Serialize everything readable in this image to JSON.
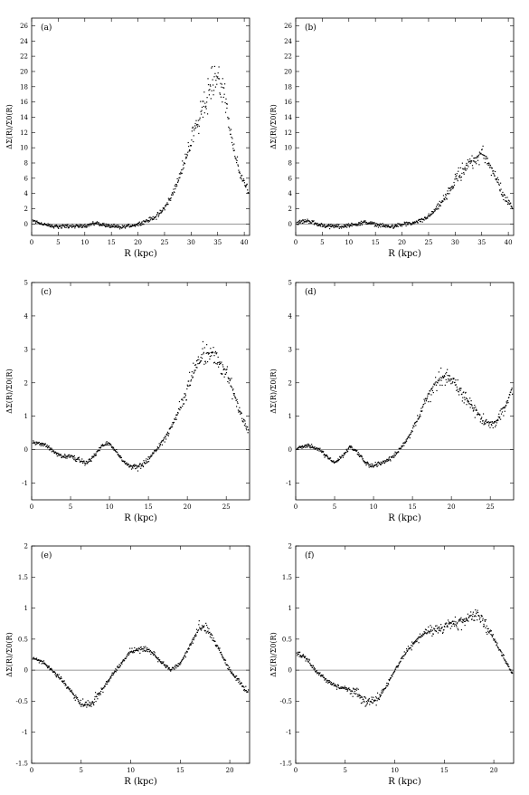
{
  "chart_data": [
    {
      "panel": "(a)",
      "type": "scatter",
      "xlabel": "R  (kpc)",
      "ylabel": "ΔΣ(R)/Σ0(R)",
      "xlim": [
        0,
        41
      ],
      "ylim": [
        -1.5,
        27
      ],
      "xticks": [
        0,
        5,
        10,
        15,
        20,
        25,
        30,
        35,
        40
      ],
      "yticks": [
        0,
        2,
        4,
        6,
        8,
        10,
        12,
        14,
        16,
        18,
        20,
        22,
        24,
        26
      ],
      "zero_line": true,
      "series": [
        {
          "x": [
            0,
            1,
            2,
            3,
            4,
            5,
            6,
            7,
            8,
            9,
            10,
            11,
            12,
            13,
            14,
            15,
            16,
            17,
            18,
            19,
            20,
            21,
            22,
            23,
            24,
            25,
            26,
            27,
            28,
            29,
            30,
            31,
            32,
            33,
            34,
            35,
            36,
            37,
            38,
            39,
            40,
            41
          ],
          "y": [
            0.5,
            0.3,
            0.0,
            -0.2,
            -0.3,
            -0.3,
            -0.3,
            -0.3,
            -0.3,
            -0.3,
            -0.2,
            -0.1,
            0.1,
            0.0,
            -0.2,
            -0.3,
            -0.4,
            -0.4,
            -0.3,
            -0.2,
            0.0,
            0.2,
            0.5,
            0.8,
            1.3,
            2.1,
            3.2,
            4.8,
            6.5,
            8.5,
            10.8,
            13.0,
            15.0,
            17.0,
            18.5,
            19.5,
            18.0,
            14.0,
            9.5,
            7.0,
            5.5,
            4.0
          ]
        }
      ]
    },
    {
      "panel": "(b)",
      "type": "scatter",
      "xlabel": "R  (kpc)",
      "ylabel": "ΔΣ(R)/Σ0(R)",
      "xlim": [
        0,
        41
      ],
      "ylim": [
        -1.5,
        27
      ],
      "xticks": [
        0,
        5,
        10,
        15,
        20,
        25,
        30,
        35,
        40
      ],
      "yticks": [
        0,
        2,
        4,
        6,
        8,
        10,
        12,
        14,
        16,
        18,
        20,
        22,
        24,
        26
      ],
      "zero_line": true,
      "series": [
        {
          "x": [
            0,
            1,
            2,
            3,
            4,
            5,
            6,
            7,
            8,
            9,
            10,
            11,
            12,
            13,
            14,
            15,
            16,
            17,
            18,
            19,
            20,
            21,
            22,
            23,
            24,
            25,
            26,
            27,
            28,
            29,
            30,
            31,
            32,
            33,
            34,
            35,
            36,
            37,
            38,
            39,
            40,
            41
          ],
          "y": [
            0.1,
            0.3,
            0.4,
            0.3,
            0.0,
            -0.2,
            -0.3,
            -0.3,
            -0.3,
            -0.3,
            -0.2,
            -0.1,
            0.1,
            0.2,
            0.1,
            -0.1,
            -0.2,
            -0.3,
            -0.3,
            -0.2,
            -0.1,
            0.0,
            0.1,
            0.3,
            0.6,
            1.0,
            1.6,
            2.4,
            3.4,
            4.5,
            5.6,
            6.6,
            7.5,
            8.2,
            8.8,
            9.3,
            8.5,
            7.0,
            5.5,
            4.0,
            3.0,
            2.0
          ]
        }
      ]
    },
    {
      "panel": "(c)",
      "type": "scatter",
      "xlabel": "R  (kpc)",
      "ylabel": "ΔΣ(R)/Σ0(R)",
      "xlim": [
        0,
        28
      ],
      "ylim": [
        -1.5,
        5
      ],
      "xticks": [
        0,
        5,
        10,
        15,
        20,
        25
      ],
      "yticks": [
        -1,
        0,
        1,
        2,
        3,
        4,
        5
      ],
      "zero_line": true,
      "series": [
        {
          "x": [
            0,
            1,
            2,
            3,
            4,
            5,
            6,
            7,
            8,
            9,
            10,
            11,
            12,
            13,
            14,
            15,
            16,
            17,
            18,
            19,
            20,
            21,
            22,
            23,
            24,
            25,
            26,
            27,
            28
          ],
          "y": [
            0.2,
            0.2,
            0.1,
            -0.1,
            -0.2,
            -0.2,
            -0.3,
            -0.4,
            -0.2,
            0.1,
            0.2,
            -0.1,
            -0.4,
            -0.5,
            -0.5,
            -0.3,
            0.0,
            0.3,
            0.7,
            1.2,
            1.8,
            2.4,
            2.8,
            2.9,
            2.7,
            2.3,
            1.7,
            1.0,
            0.5
          ]
        }
      ]
    },
    {
      "panel": "(d)",
      "type": "scatter",
      "xlabel": "R  (kpc)",
      "ylabel": "ΔΣ(R)/Σ0(R)",
      "xlim": [
        0,
        28
      ],
      "ylim": [
        -1.5,
        5
      ],
      "xticks": [
        0,
        5,
        10,
        15,
        20,
        25
      ],
      "yticks": [
        -1,
        0,
        1,
        2,
        3,
        4,
        5
      ],
      "zero_line": true,
      "series": [
        {
          "x": [
            0,
            1,
            2,
            3,
            4,
            5,
            6,
            7,
            8,
            9,
            10,
            11,
            12,
            13,
            14,
            15,
            16,
            17,
            18,
            19,
            20,
            21,
            22,
            23,
            24,
            25,
            26,
            27,
            28
          ],
          "y": [
            0.0,
            0.1,
            0.1,
            0.0,
            -0.2,
            -0.4,
            -0.2,
            0.1,
            -0.1,
            -0.4,
            -0.5,
            -0.4,
            -0.3,
            -0.1,
            0.2,
            0.6,
            1.1,
            1.6,
            2.0,
            2.2,
            2.1,
            1.8,
            1.5,
            1.2,
            0.9,
            0.8,
            0.9,
            1.3,
            2.0
          ]
        }
      ]
    },
    {
      "panel": "(e)",
      "type": "scatter",
      "xlabel": "R  (kpc)",
      "ylabel": "ΔΣ(R)/Σ0(R)",
      "xlim": [
        0,
        22
      ],
      "ylim": [
        -1.5,
        2
      ],
      "xticks": [
        0,
        5,
        10,
        15,
        20
      ],
      "yticks": [
        -1.5,
        -1,
        -0.5,
        0,
        0.5,
        1,
        1.5,
        2
      ],
      "zero_line": true,
      "series": [
        {
          "x": [
            0,
            1,
            2,
            3,
            4,
            5,
            6,
            7,
            8,
            9,
            10,
            11,
            12,
            13,
            14,
            15,
            16,
            17,
            18,
            19,
            20,
            21,
            22
          ],
          "y": [
            0.2,
            0.15,
            0.0,
            -0.15,
            -0.35,
            -0.55,
            -0.55,
            -0.35,
            -0.1,
            0.1,
            0.3,
            0.35,
            0.3,
            0.15,
            0.0,
            0.1,
            0.4,
            0.7,
            0.6,
            0.3,
            0.0,
            -0.2,
            -0.4
          ]
        }
      ]
    },
    {
      "panel": "(f)",
      "type": "scatter",
      "xlabel": "R  (kpc)",
      "ylabel": "ΔΣ(R)/Σ0(R)",
      "xlim": [
        0,
        22
      ],
      "ylim": [
        -1.5,
        2
      ],
      "xticks": [
        0,
        5,
        10,
        15,
        20
      ],
      "yticks": [
        -1.5,
        -1,
        -0.5,
        0,
        0.5,
        1,
        1.5,
        2
      ],
      "zero_line": true,
      "series": [
        {
          "x": [
            0,
            1,
            2,
            3,
            4,
            5,
            6,
            7,
            8,
            9,
            10,
            11,
            12,
            13,
            14,
            15,
            16,
            17,
            18,
            19,
            20,
            21,
            22
          ],
          "y": [
            0.3,
            0.2,
            0.0,
            -0.15,
            -0.25,
            -0.3,
            -0.35,
            -0.5,
            -0.5,
            -0.3,
            0.0,
            0.25,
            0.45,
            0.6,
            0.65,
            0.7,
            0.75,
            0.8,
            0.9,
            0.8,
            0.5,
            0.2,
            -0.1
          ]
        }
      ]
    }
  ]
}
